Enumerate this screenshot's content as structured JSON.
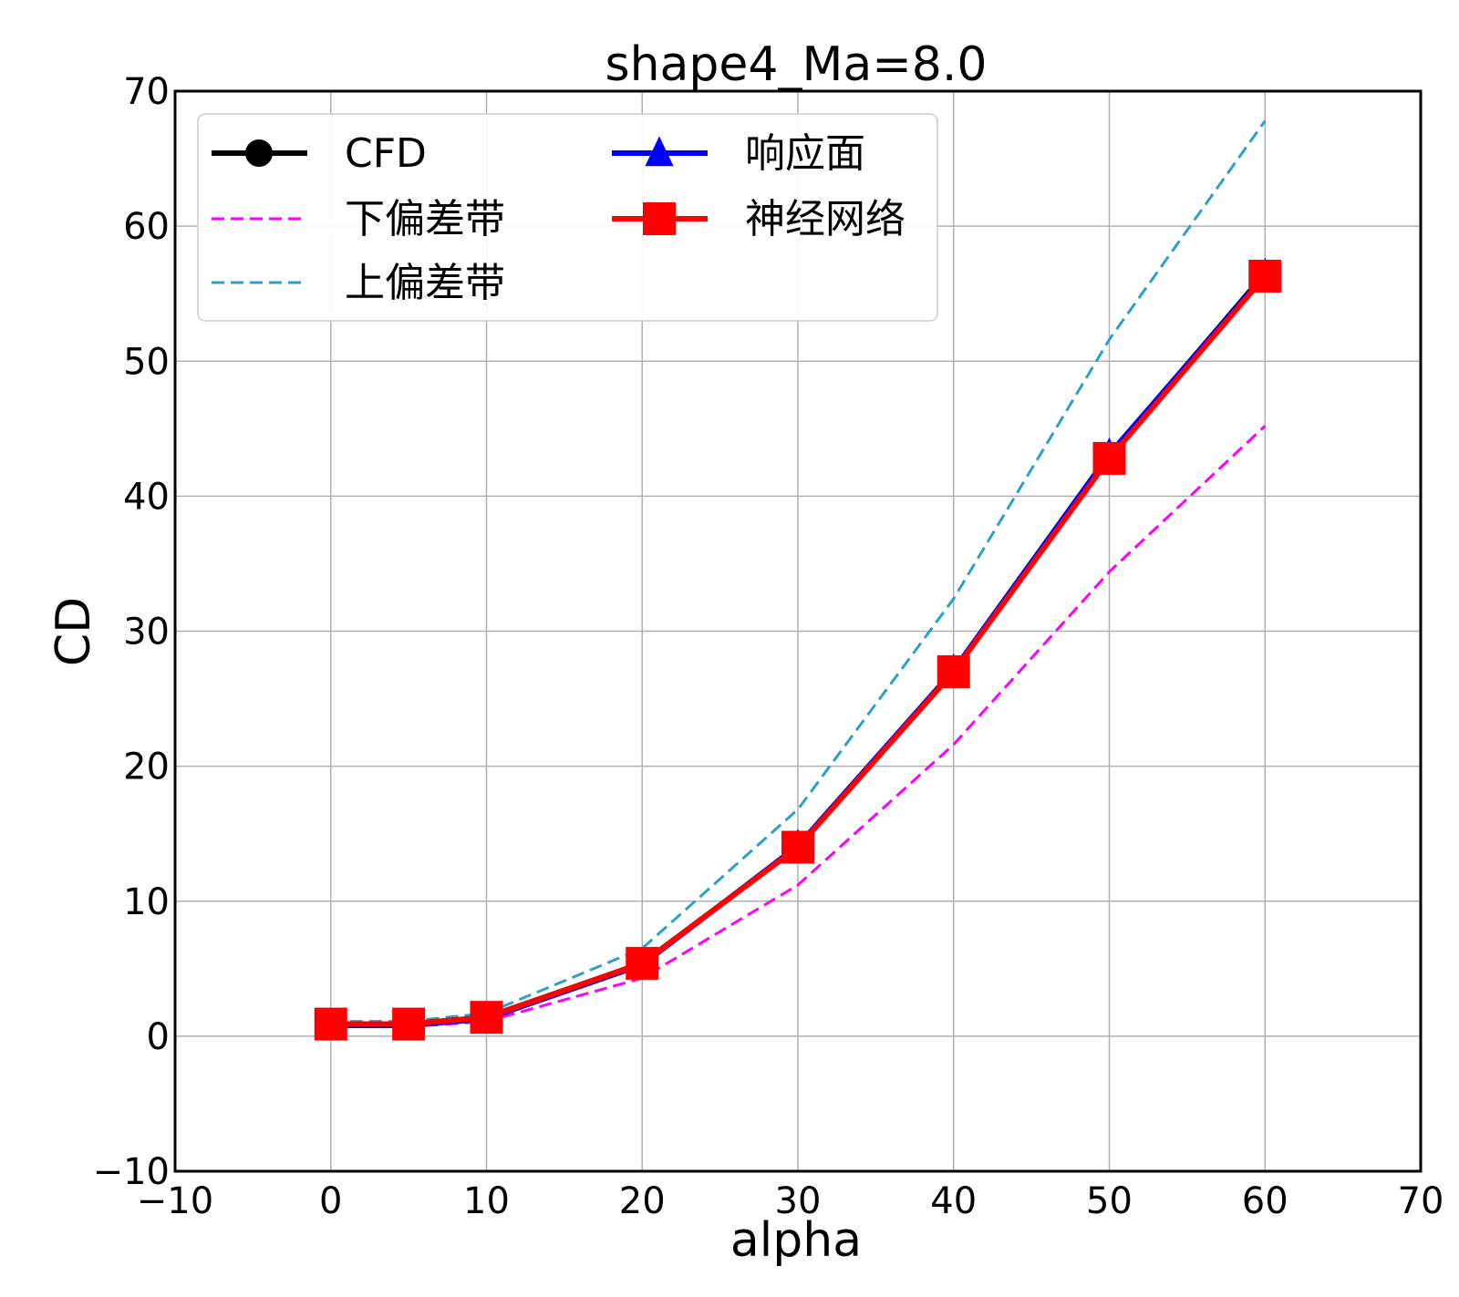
{
  "chart_data": {
    "type": "line",
    "title": "shape4_Ma=8.0",
    "xlabel": "alpha",
    "ylabel": "CD",
    "xlim": [
      -10,
      70
    ],
    "ylim": [
      -10,
      70
    ],
    "xticks": [
      -10,
      0,
      10,
      20,
      30,
      40,
      50,
      60,
      70
    ],
    "yticks": [
      -10,
      0,
      10,
      20,
      30,
      40,
      50,
      60,
      70
    ],
    "grid": true,
    "legend_position": "upper-left",
    "x": [
      0,
      5,
      10,
      20,
      30,
      40,
      50,
      60
    ],
    "series": [
      {
        "name": "CFD",
        "values": [
          0.9,
          0.9,
          1.4,
          5.4,
          14.0,
          27.0,
          43.0,
          56.5
        ],
        "color": "#000000",
        "marker": "circle",
        "style": "solid"
      },
      {
        "name": "下偏差带",
        "values": [
          0.7,
          0.7,
          1.1,
          4.3,
          11.2,
          21.6,
          34.4,
          45.2
        ],
        "color": "#ff00ff",
        "marker": "none",
        "style": "dashed"
      },
      {
        "name": "上偏差带",
        "values": [
          1.1,
          1.1,
          1.7,
          6.5,
          16.8,
          32.4,
          51.6,
          67.8
        ],
        "color": "#2ca0c8",
        "marker": "none",
        "style": "dashed"
      },
      {
        "name": "响应面",
        "values": [
          0.8,
          0.8,
          1.3,
          5.3,
          14.1,
          27.1,
          43.1,
          56.4
        ],
        "color": "#0000ff",
        "marker": "triangle",
        "style": "solid"
      },
      {
        "name": "神经网络",
        "values": [
          0.9,
          0.9,
          1.4,
          5.4,
          14.0,
          27.0,
          42.8,
          56.3
        ],
        "color": "#ff0000",
        "marker": "square",
        "style": "solid"
      }
    ]
  }
}
